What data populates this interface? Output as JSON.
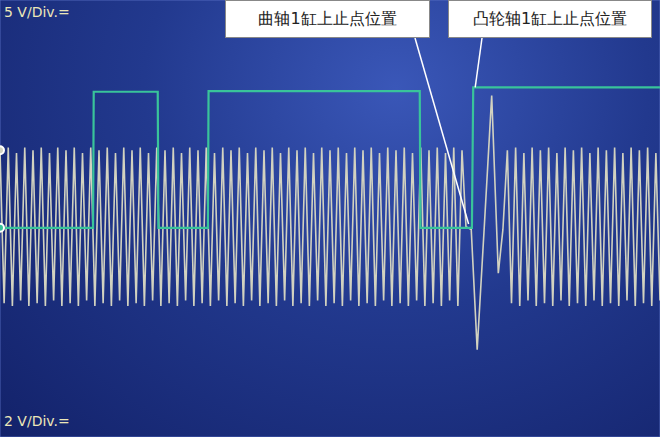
{
  "chart_data": {
    "type": "line",
    "xlim": [
      0,
      10
    ],
    "xticks": [
      0,
      1,
      2,
      3,
      4,
      5,
      6,
      7,
      8,
      9,
      10
    ],
    "ylim": [
      0,
      8
    ],
    "yticks": [
      0,
      1,
      2,
      3,
      4,
      5,
      6,
      7,
      8
    ],
    "grid": true,
    "tick_labels": false,
    "scale_labels": [
      "5 V/Div.=",
      "2 V/Div.="
    ],
    "annotations": [
      {
        "text": "曲轴1缸上止点位置",
        "x": 7.1,
        "y": 3.9
      },
      {
        "text": "凸轮轴1缸上止点位置",
        "x": 7.2,
        "y": 6.4
      }
    ],
    "series": [
      {
        "color": "#d2d2c0",
        "x": [
          0,
          0.0625,
          0.125,
          0.1875,
          0.25,
          0.3125,
          0.375,
          0.4375,
          0.5,
          0.5625,
          0.625,
          0.6875,
          0.75,
          0.8125,
          0.875,
          0.9375,
          1,
          1.0625,
          1.125,
          1.1875,
          1.25,
          1.3125,
          1.375,
          1.4375,
          1.5,
          1.5625,
          1.625,
          1.6875,
          1.75,
          1.8125,
          1.875,
          1.9375,
          2,
          2.0625,
          2.125,
          2.1875,
          2.25,
          2.3125,
          2.375,
          2.4375,
          2.5,
          2.5625,
          2.625,
          2.6875,
          2.75,
          2.8125,
          2.875,
          2.9375,
          3,
          3.0625,
          3.125,
          3.1875,
          3.25,
          3.3125,
          3.375,
          3.4375,
          3.5,
          3.5625,
          3.625,
          3.6875,
          3.75,
          3.8125,
          3.875,
          3.9375,
          4,
          4.0625,
          4.125,
          4.1875,
          4.25,
          4.3125,
          4.375,
          4.4375,
          4.5,
          4.5625,
          4.625,
          4.6875,
          4.75,
          4.8125,
          4.875,
          4.9375,
          5,
          5.0625,
          5.125,
          5.1875,
          5.25,
          5.3125,
          5.375,
          5.4375,
          5.5,
          5.5625,
          5.625,
          5.6875,
          5.75,
          5.8125,
          5.875,
          5.9375,
          6,
          6.0625,
          6.125,
          6.1875,
          6.25,
          6.3125,
          6.375,
          6.4375,
          6.5,
          6.5625,
          6.625,
          6.6875,
          6.75,
          6.8125,
          6.875,
          6.9375,
          7,
          7.06,
          7.14,
          7.23,
          7.34,
          7.45,
          7.55,
          7.62,
          7.6875,
          7.75,
          7.8125,
          7.875,
          7.9375,
          8,
          8.0625,
          8.125,
          8.1875,
          8.25,
          8.3125,
          8.375,
          8.4375,
          8.5,
          8.5625,
          8.625,
          8.6875,
          8.75,
          8.8125,
          8.875,
          8.9375,
          9,
          9.0625,
          9.125,
          9.1875,
          9.25,
          9.3125,
          9.375,
          9.4375,
          9.5,
          9.5625,
          9.625,
          9.6875,
          9.75,
          9.8125,
          9.875,
          9.9375,
          10
        ],
        "values": [
          5.25,
          2.45,
          5.3,
          2.4,
          5.2,
          2.5,
          5.3,
          2.4,
          5.25,
          2.45,
          5.3,
          2.4,
          5.2,
          2.5,
          5.3,
          2.4,
          5.25,
          2.45,
          5.3,
          2.4,
          5.2,
          2.5,
          5.3,
          2.4,
          5.25,
          2.45,
          5.3,
          2.4,
          5.2,
          2.5,
          5.3,
          2.4,
          5.25,
          2.45,
          5.3,
          2.4,
          5.2,
          2.5,
          5.3,
          2.4,
          5.25,
          2.45,
          5.3,
          2.4,
          5.2,
          2.5,
          5.3,
          2.4,
          5.25,
          2.45,
          5.3,
          2.4,
          5.2,
          2.5,
          5.3,
          2.4,
          5.25,
          2.45,
          5.3,
          2.4,
          5.2,
          2.5,
          5.3,
          2.4,
          5.25,
          2.45,
          5.3,
          2.4,
          5.2,
          2.5,
          5.3,
          2.4,
          5.25,
          2.45,
          5.3,
          2.4,
          5.2,
          2.5,
          5.3,
          2.4,
          5.25,
          2.45,
          5.3,
          2.4,
          5.2,
          2.5,
          5.3,
          2.4,
          5.25,
          2.45,
          5.3,
          2.4,
          5.2,
          2.5,
          5.3,
          2.4,
          5.25,
          2.45,
          5.3,
          2.4,
          5.2,
          2.5,
          5.3,
          2.4,
          5.25,
          2.45,
          5.3,
          2.4,
          5.2,
          2.5,
          5.3,
          2.4,
          5.25,
          3.85,
          3.8,
          1.6,
          3.9,
          6.25,
          3.0,
          3.8,
          5.25,
          2.45,
          5.3,
          2.4,
          5.2,
          2.5,
          5.3,
          2.4,
          5.25,
          2.45,
          5.3,
          2.4,
          5.2,
          2.5,
          5.3,
          2.4,
          5.25,
          2.45,
          5.3,
          2.4,
          5.2,
          2.5,
          5.3,
          2.4,
          5.25,
          2.45,
          5.3,
          2.4,
          5.2,
          2.5,
          5.3,
          2.4,
          5.25,
          2.45,
          5.3,
          2.4,
          5.2,
          2.5
        ]
      },
      {
        "color": "#39c49a",
        "x": [
          0,
          1.41,
          1.42,
          2.39,
          2.4,
          3.15,
          3.16,
          6.36,
          6.37,
          7.15,
          7.17,
          10
        ],
        "values": [
          3.83,
          3.83,
          6.32,
          6.32,
          3.83,
          3.83,
          6.33,
          6.33,
          3.83,
          3.83,
          6.4,
          6.4
        ]
      }
    ]
  }
}
